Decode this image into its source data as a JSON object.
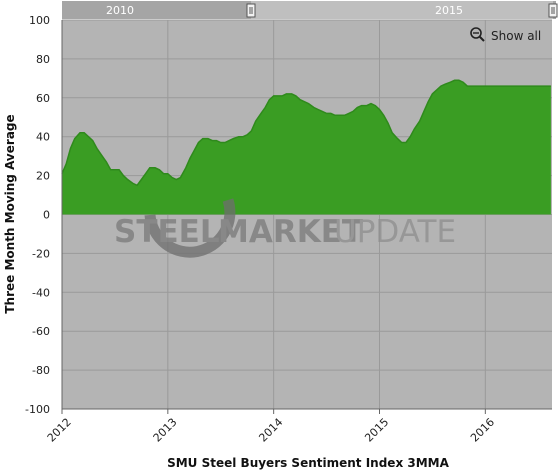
{
  "chart_data": {
    "type": "area",
    "title": "",
    "xlabel": "SMU Steel Buyers Sentiment Index 3MMA",
    "ylabel": "Three Month Moving Average",
    "ylim": [
      -100,
      100
    ],
    "xlim": [
      2012.0,
      2016.63
    ],
    "y_ticks": [
      "100",
      "80",
      "60",
      "40",
      "20",
      "0",
      "-20",
      "-40",
      "-60",
      "-80",
      "-100"
    ],
    "x_ticks": [
      "2012",
      "2013",
      "2014",
      "2015",
      "2016"
    ],
    "grid": true,
    "legend": "none",
    "series": [
      {
        "x": [
          2012.0,
          2012.04,
          2012.08,
          2012.12,
          2012.17,
          2012.21,
          2012.25,
          2012.29,
          2012.33,
          2012.38,
          2012.42,
          2012.46,
          2012.5,
          2012.54,
          2012.58,
          2012.62,
          2012.67,
          2012.71,
          2012.75,
          2012.79,
          2012.83,
          2012.88,
          2012.92,
          2012.96,
          2013.0,
          2013.04,
          2013.08,
          2013.12,
          2013.17,
          2013.21,
          2013.25,
          2013.29,
          2013.33,
          2013.38,
          2013.42,
          2013.46,
          2013.5,
          2013.54,
          2013.58,
          2013.62,
          2013.67,
          2013.71,
          2013.75,
          2013.79,
          2013.83,
          2013.88,
          2013.92,
          2013.96,
          2014.0,
          2014.04,
          2014.08,
          2014.12,
          2014.17,
          2014.21,
          2014.25,
          2014.29,
          2014.33,
          2014.38,
          2014.42,
          2014.46,
          2014.5,
          2014.54,
          2014.58,
          2014.62,
          2014.67,
          2014.71,
          2014.75,
          2014.79,
          2014.83,
          2014.88,
          2014.92,
          2014.96,
          2015.0,
          2015.04,
          2015.08,
          2015.12,
          2015.17,
          2015.21,
          2015.25,
          2015.29,
          2015.33,
          2015.38,
          2015.42,
          2015.46,
          2015.5,
          2015.54,
          2015.58,
          2015.62,
          2015.67,
          2015.71,
          2015.75,
          2015.79,
          2015.83,
          2015.88,
          2015.92,
          2015.96,
          2016.0,
          2016.04,
          2016.08,
          2016.12,
          2016.17,
          2016.21,
          2016.25,
          2016.29,
          2016.33,
          2016.38,
          2016.42,
          2016.46,
          2016.5,
          2016.54,
          2016.58,
          2016.62
        ],
        "values": [
          21,
          26,
          34,
          39,
          42,
          42,
          40,
          38,
          34,
          30,
          27,
          23,
          23,
          23,
          20,
          18,
          16,
          15,
          18,
          21,
          24,
          24,
          23,
          21,
          21,
          19,
          18,
          19,
          24,
          29,
          33,
          37,
          39,
          39,
          38,
          38,
          37,
          37,
          38,
          39,
          40,
          40,
          41,
          43,
          48,
          52,
          55,
          59,
          61,
          61,
          61,
          62,
          62,
          61,
          59,
          58,
          57,
          55,
          54,
          53,
          52,
          52,
          51,
          51,
          51,
          52,
          53,
          55,
          56,
          56,
          57,
          56,
          54,
          51,
          47,
          42,
          39,
          37,
          37,
          40,
          44,
          48,
          53,
          58,
          62,
          64,
          66,
          67,
          68,
          69,
          69,
          68,
          66,
          66,
          66,
          66,
          66,
          66,
          66,
          66,
          66,
          66,
          66,
          66,
          66,
          66,
          66,
          66,
          66,
          66,
          66,
          66
        ]
      }
    ]
  },
  "navigator": {
    "labels": [
      "2010",
      "2015"
    ]
  },
  "controls": {
    "show_all": "Show all"
  },
  "watermark": {
    "word1": "STEEL",
    "word2": "MARKET",
    "word3": "UPDATE"
  },
  "colors": {
    "area_fill": "#3a9d23",
    "area_line": "#2f8a1c",
    "plot_bg": "#b4b4b4",
    "grid": "#9a9a9a"
  }
}
